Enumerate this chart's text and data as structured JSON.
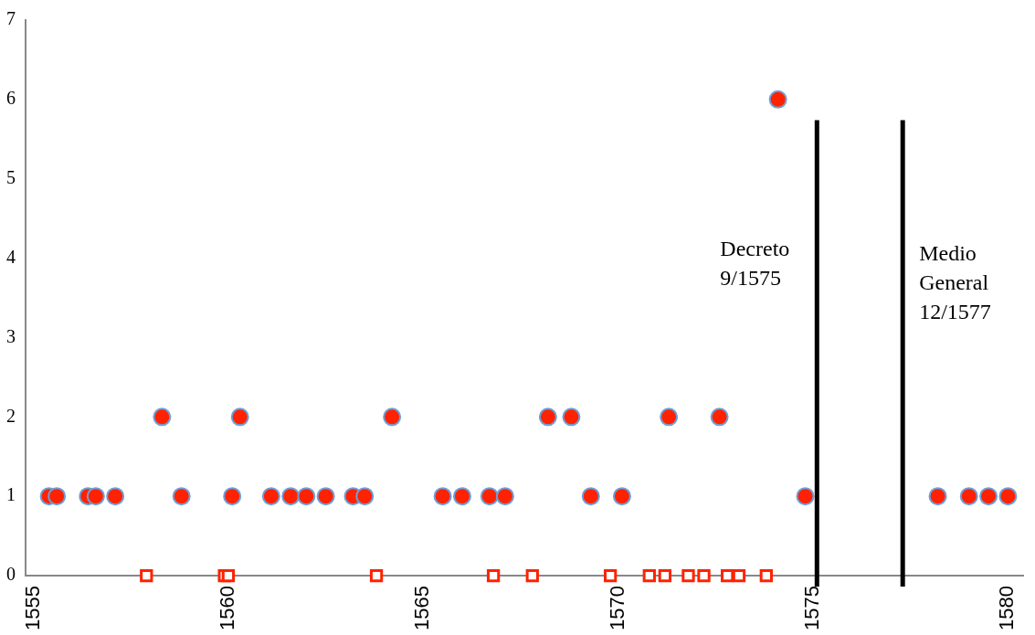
{
  "chart_data": {
    "type": "scatter",
    "xlim": [
      1554.8,
      1580.4
    ],
    "xticks": [
      1555,
      1560,
      1565,
      1570,
      1575,
      1580
    ],
    "ylim": [
      0,
      7
    ],
    "yticks": [
      0,
      1,
      2,
      3,
      4,
      5,
      6,
      7
    ],
    "grid": false,
    "legend": false,
    "series": [
      {
        "color": "#ff2200",
        "marker": "circle",
        "x": [
          1555.4,
          1555.6,
          1556.4,
          1556.6,
          1557.1,
          1558.8,
          1560.1,
          1561.1,
          1561.6,
          1562.0,
          1562.5,
          1563.2,
          1563.5,
          1565.5,
          1566.0,
          1566.7,
          1567.1,
          1569.3,
          1570.1,
          1574.8,
          1578.2,
          1579.0,
          1579.5,
          1580.0,
          1558.3,
          1560.3,
          1564.2,
          1568.2,
          1568.8,
          1571.3,
          1572.6,
          1574.1
        ],
        "values": [
          1,
          1,
          1,
          1,
          1,
          1,
          1,
          1,
          1,
          1,
          1,
          1,
          1,
          1,
          1,
          1,
          1,
          1,
          1,
          1,
          1,
          1,
          1,
          1,
          2,
          2,
          2,
          2,
          2,
          2,
          2,
          6
        ]
      },
      {
        "color": "#ff2200",
        "marker": "square",
        "x": [
          1557.9,
          1559.9,
          1560.0,
          1563.8,
          1566.8,
          1567.8,
          1569.8,
          1570.8,
          1571.2,
          1571.8,
          1572.2,
          1572.8,
          1573.1,
          1573.8
        ],
        "values": [
          0,
          0,
          0,
          0,
          0,
          0,
          0,
          0,
          0,
          0,
          0,
          0,
          0,
          0
        ]
      }
    ],
    "ref_lines": [
      {
        "axis": "x",
        "value": 1575.1,
        "label": "Decreto\n9/1575",
        "color": "#000000",
        "line_style": "solid"
      },
      {
        "axis": "x",
        "value": 1577.3,
        "label": "Medio\nGeneral\n12/1577",
        "color": "#000000",
        "line_style": "solid"
      }
    ]
  }
}
